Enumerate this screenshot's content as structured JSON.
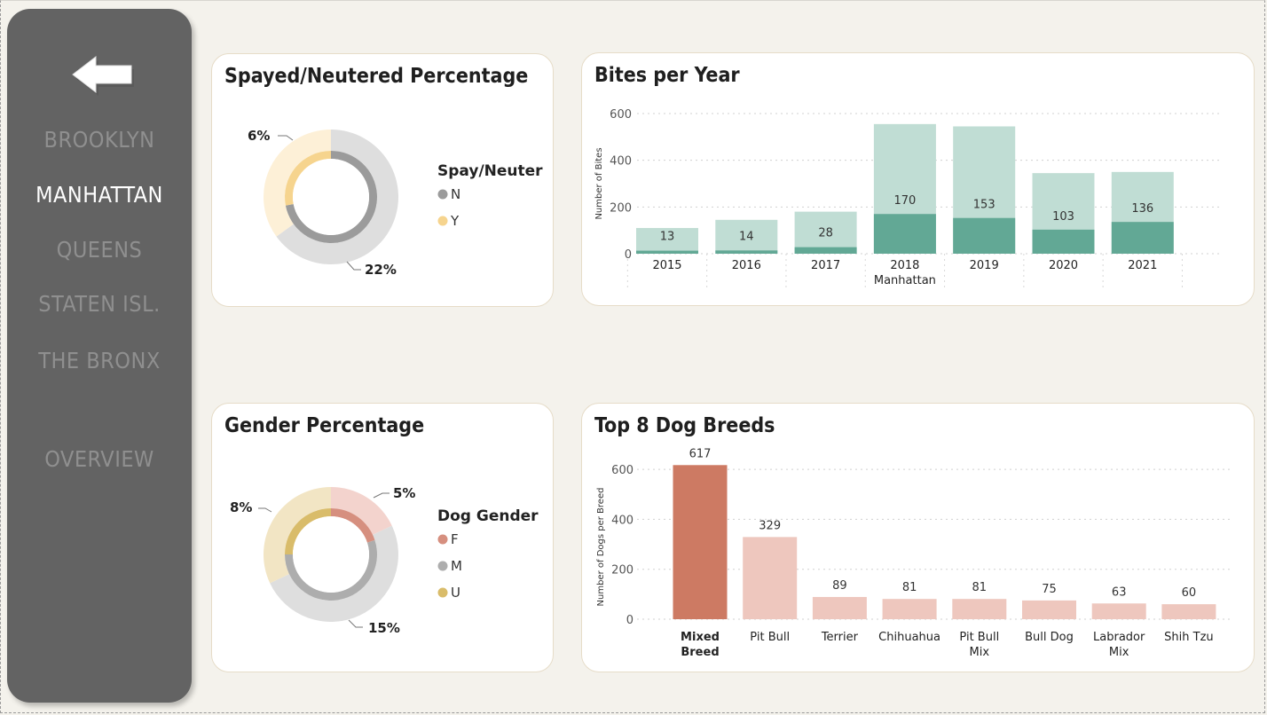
{
  "sidebar": {
    "back_icon": "left-arrow-icon",
    "items": [
      {
        "label": "BROOKLYN",
        "active": false
      },
      {
        "label": "MANHATTAN",
        "active": true
      },
      {
        "label": "QUEENS",
        "active": false
      },
      {
        "label": "STATEN ISL.",
        "active": false
      },
      {
        "label": "THE BRONX",
        "active": false
      },
      {
        "label": "OVERVIEW",
        "active": false
      }
    ]
  },
  "cards": {
    "spay": {
      "title": "Spayed/Neutered Percentage"
    },
    "bites": {
      "title": "Bites per Year"
    },
    "gender": {
      "title": "Gender Percentage"
    },
    "breeds": {
      "title": "Top 8 Dog Breeds"
    }
  },
  "chart_data": [
    {
      "id": "spay",
      "type": "pie",
      "variant": "double-donut",
      "legend_title": "Spay/Neuter",
      "legend": [
        {
          "label": "N",
          "color": "#9b9b9b"
        },
        {
          "label": "Y",
          "color": "#f6d48e"
        }
      ],
      "outer": {
        "labels": [
          "N",
          "Y"
        ],
        "values": [
          65,
          35
        ],
        "colors": [
          "#dedede",
          "#fdf0d7"
        ]
      },
      "inner": {
        "labels": [
          "N",
          "Y"
        ],
        "values": [
          72,
          28
        ],
        "colors": [
          "#9b9b9b",
          "#f6d48e"
        ]
      },
      "annotations": [
        "6%",
        "22%"
      ]
    },
    {
      "id": "bites",
      "type": "bar",
      "variant": "stacked-overlay",
      "categories": [
        "2015",
        "2016",
        "2017",
        "2018",
        "2019",
        "2020",
        "2021"
      ],
      "xgroup": "Manhattan",
      "ylabel": "Number of Bites",
      "ylim": [
        0,
        600
      ],
      "yticks": [
        0,
        200,
        400,
        600
      ],
      "series": [
        {
          "values": [
            110,
            145,
            180,
            555,
            545,
            345,
            350
          ],
          "color": "#c0ddd4"
        },
        {
          "values": [
            13,
            14,
            28,
            170,
            153,
            103,
            136
          ],
          "color": "#62a895"
        }
      ],
      "value_labels": [
        "13",
        "14",
        "28",
        "170",
        "153",
        "103",
        "136"
      ],
      "grid": true
    },
    {
      "id": "gender",
      "type": "pie",
      "variant": "double-donut",
      "legend_title": "Dog Gender",
      "legend": [
        {
          "label": "F",
          "color": "#d68f7f"
        },
        {
          "label": "M",
          "color": "#adadad"
        },
        {
          "label": "U",
          "color": "#d9bc6a"
        }
      ],
      "outer": {
        "labels": [
          "F",
          "M",
          "U"
        ],
        "values": [
          18,
          50,
          32
        ],
        "colors": [
          "#f3d3cd",
          "#dedede",
          "#f2e5c4"
        ]
      },
      "inner": {
        "labels": [
          "F",
          "M",
          "U"
        ],
        "values": [
          20,
          55,
          25
        ],
        "colors": [
          "#d68f7f",
          "#adadad",
          "#d9bc6a"
        ]
      },
      "annotations": [
        "5%",
        "15%",
        "8%"
      ]
    },
    {
      "id": "breeds",
      "type": "bar",
      "categories": [
        "Mixed Breed",
        "Pit Bull",
        "Terrier",
        "Chihuahua",
        "Pit Bull Mix",
        "Bull Dog",
        "Labrador Mix",
        "Shih Tzu"
      ],
      "values": [
        617,
        329,
        89,
        81,
        81,
        75,
        63,
        60
      ],
      "ylabel": "Number of Dogs per Breed",
      "ylim": [
        0,
        650
      ],
      "yticks": [
        0,
        200,
        400,
        600
      ],
      "highlight_index": 0,
      "colors": {
        "highlight": "#cd7a63",
        "normal": "#eec7be"
      },
      "grid": true
    }
  ]
}
